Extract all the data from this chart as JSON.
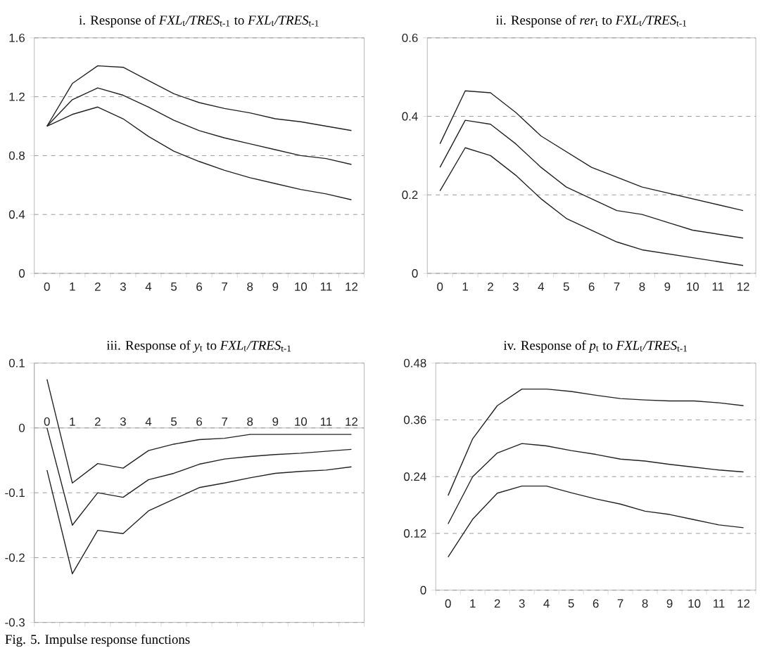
{
  "chart_data": [
    {
      "type": "line",
      "title": "i. Response of *FXL*$_{t}$*/TRES*$_{t-1}$ to *FXL*$_{t}$*/TRES*$_{t-1}$",
      "categories": [
        "0",
        "1",
        "2",
        "3",
        "4",
        "5",
        "6",
        "7",
        "8",
        "9",
        "10",
        "11",
        "12"
      ],
      "ylim": [
        0,
        1.6
      ],
      "yticks": [
        0,
        0.4,
        0.8,
        1.2,
        1.6
      ],
      "grid": "y",
      "series": [
        {
          "color": "#222222",
          "values": [
            1.0,
            1.29,
            1.41,
            1.4,
            1.31,
            1.22,
            1.16,
            1.12,
            1.09,
            1.05,
            1.03,
            1.0,
            0.97
          ]
        },
        {
          "color": "#222222",
          "values": [
            1.0,
            1.18,
            1.26,
            1.21,
            1.13,
            1.04,
            0.97,
            0.92,
            0.88,
            0.84,
            0.8,
            0.78,
            0.74
          ]
        },
        {
          "color": "#222222",
          "values": [
            1.0,
            1.08,
            1.13,
            1.05,
            0.93,
            0.83,
            0.76,
            0.7,
            0.65,
            0.61,
            0.57,
            0.54,
            0.5
          ]
        }
      ]
    },
    {
      "type": "line",
      "title": "ii. Response of *rer*$_{t}$ to *FXL*$_{t}$*/TRES*$_{t-1}$",
      "categories": [
        "0",
        "1",
        "2",
        "3",
        "4",
        "5",
        "6",
        "7",
        "8",
        "9",
        "10",
        "11",
        "12"
      ],
      "ylim": [
        0,
        0.6
      ],
      "yticks": [
        0,
        0.2,
        0.4,
        0.6
      ],
      "grid": "y",
      "series": [
        {
          "color": "#222222",
          "values": [
            0.33,
            0.465,
            0.46,
            0.41,
            0.35,
            0.31,
            0.27,
            0.245,
            0.22,
            0.205,
            0.19,
            0.175,
            0.16
          ]
        },
        {
          "color": "#222222",
          "values": [
            0.27,
            0.39,
            0.38,
            0.33,
            0.27,
            0.22,
            0.19,
            0.16,
            0.15,
            0.13,
            0.11,
            0.1,
            0.09
          ]
        },
        {
          "color": "#222222",
          "values": [
            0.21,
            0.32,
            0.3,
            0.25,
            0.19,
            0.14,
            0.11,
            0.08,
            0.06,
            0.05,
            0.04,
            0.03,
            0.02
          ]
        }
      ]
    },
    {
      "type": "line",
      "title": "iii. Response of *y*$_{t}$ to *FXL*$_{t}$*/TRES*$_{t-1}$",
      "categories": [
        "0",
        "1",
        "2",
        "3",
        "4",
        "5",
        "6",
        "7",
        "8",
        "9",
        "10",
        "11",
        "12"
      ],
      "ylim": [
        -0.3,
        0.1
      ],
      "yticks": [
        -0.3,
        -0.2,
        -0.1,
        0,
        0.1
      ],
      "grid": "y",
      "annotations": [
        "Fig. 5. Impulse response functions"
      ],
      "series": [
        {
          "color": "#222222",
          "values": [
            0.075,
            -0.085,
            -0.055,
            -0.062,
            -0.035,
            -0.025,
            -0.018,
            -0.016,
            -0.01,
            -0.01,
            -0.01,
            -0.01,
            -0.01
          ]
        },
        {
          "color": "#222222",
          "values": [
            0.0,
            -0.15,
            -0.1,
            -0.107,
            -0.08,
            -0.07,
            -0.056,
            -0.048,
            -0.044,
            -0.041,
            -0.039,
            -0.036,
            -0.033
          ]
        },
        {
          "color": "#222222",
          "values": [
            -0.065,
            -0.225,
            -0.158,
            -0.163,
            -0.128,
            -0.11,
            -0.092,
            -0.085,
            -0.077,
            -0.07,
            -0.067,
            -0.065,
            -0.06
          ]
        }
      ]
    },
    {
      "type": "line",
      "title": "iv. Response of *p*$_{t}$ to *FXL*$_{t}$*/TRES*$_{t-1}$",
      "categories": [
        "0",
        "1",
        "2",
        "3",
        "4",
        "5",
        "6",
        "7",
        "8",
        "9",
        "10",
        "11",
        "12"
      ],
      "ylim": [
        0,
        0.48
      ],
      "yticks": [
        0,
        0.12,
        0.24,
        0.36,
        0.48
      ],
      "grid": "y",
      "series": [
        {
          "color": "#222222",
          "values": [
            0.2,
            0.32,
            0.39,
            0.425,
            0.425,
            0.42,
            0.412,
            0.405,
            0.402,
            0.4,
            0.4,
            0.396,
            0.39
          ]
        },
        {
          "color": "#222222",
          "values": [
            0.14,
            0.24,
            0.29,
            0.31,
            0.305,
            0.295,
            0.287,
            0.277,
            0.273,
            0.266,
            0.26,
            0.254,
            0.25
          ]
        },
        {
          "color": "#222222",
          "values": [
            0.07,
            0.15,
            0.205,
            0.22,
            0.22,
            0.206,
            0.193,
            0.182,
            0.167,
            0.16,
            0.149,
            0.138,
            0.132
          ]
        }
      ]
    }
  ]
}
